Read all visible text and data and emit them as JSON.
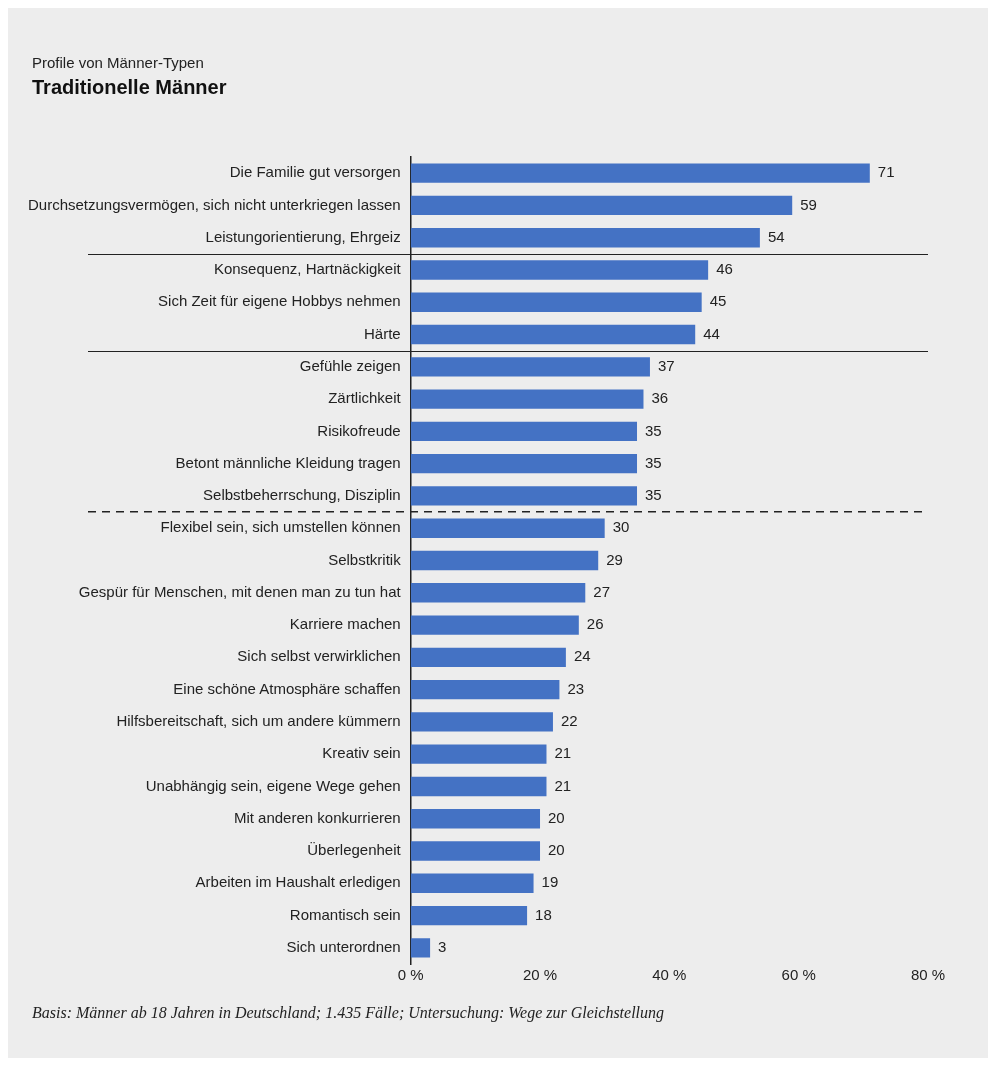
{
  "chart_data": {
    "type": "bar",
    "orientation": "horizontal",
    "subtitle": "Profile von Männer-Typen",
    "title": "Traditionelle Männer",
    "categories": [
      "Die Familie gut versorgen",
      "Durchsetzungsvermögen, sich nicht unterkriegen lassen",
      "Leistungorientierung, Ehrgeiz",
      "Konsequenz, Hartnäckigkeit",
      "Sich Zeit für eigene Hobbys nehmen",
      "Härte",
      "Gefühle zeigen",
      "Zärtlichkeit",
      "Risikofreude",
      "Betont männliche Kleidung tragen",
      "Selbstbeherrschung, Disziplin",
      "Flexibel sein, sich umstellen können",
      "Selbstkritik",
      "Gespür für Menschen, mit denen man zu tun hat",
      "Karriere machen",
      "Sich selbst verwirklichen",
      "Eine schöne Atmosphäre schaffen",
      "Hilfsbereitschaft, sich um andere kümmern",
      "Kreativ sein",
      "Unabhängig sein, eigene Wege gehen",
      "Mit anderen konkurrieren",
      "Überlegenheit",
      "Arbeiten im Haushalt erledigen",
      "Romantisch sein",
      "Sich unterordnen"
    ],
    "values": [
      71,
      59,
      54,
      46,
      45,
      44,
      37,
      36,
      35,
      35,
      35,
      30,
      29,
      27,
      26,
      24,
      23,
      22,
      21,
      21,
      20,
      20,
      19,
      18,
      3
    ],
    "color": "#4472c4",
    "data_labels": true,
    "grid": false,
    "legend": false,
    "xlim": [
      0,
      80
    ],
    "xticks": [
      {
        "value": 0,
        "label": "0 %"
      },
      {
        "value": 20,
        "label": "20 %"
      },
      {
        "value": 40,
        "label": "40 %"
      },
      {
        "value": 60,
        "label": "60 %"
      },
      {
        "value": 80,
        "label": "80 %"
      }
    ],
    "annotations": [
      "Basis: Männer ab 18 Jahren in Deutschland; 1.435 Fälle; Untersuchung: Wege zur Gleichstellung"
    ]
  }
}
